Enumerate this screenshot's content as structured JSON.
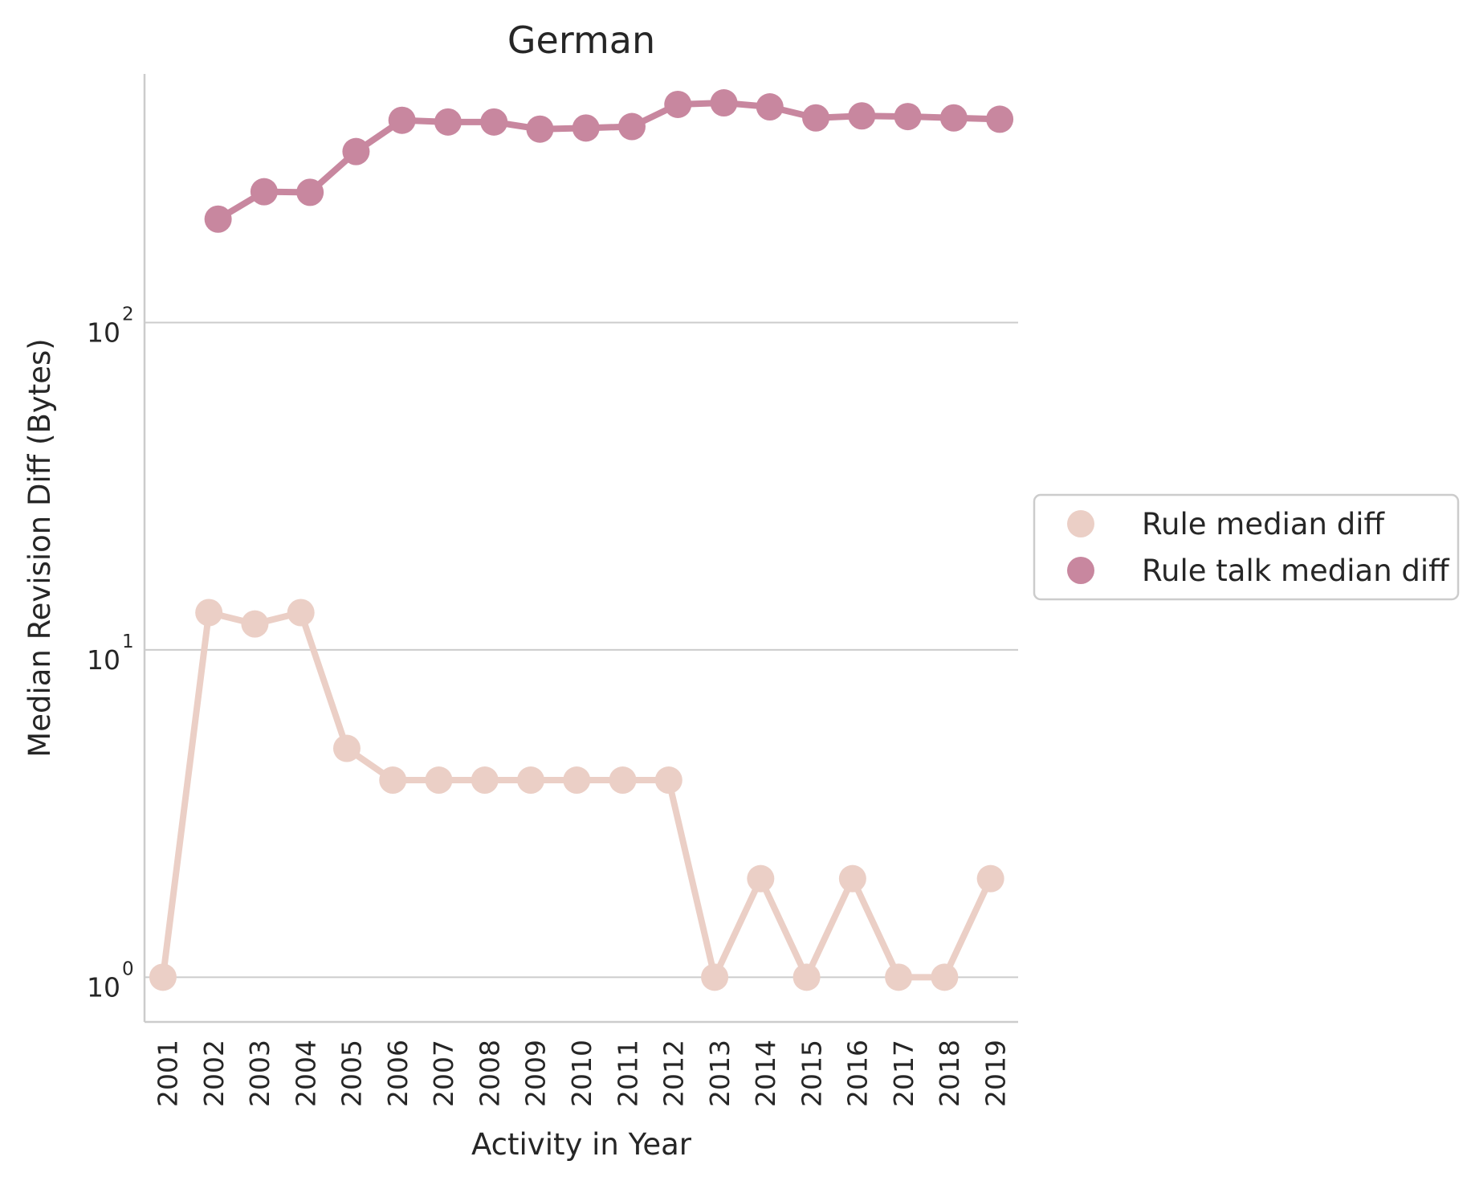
{
  "chart_data": {
    "type": "line",
    "title": "German",
    "xlabel": "Activity in Year",
    "ylabel": "Median Revision Diff (Bytes)",
    "yscale": "log",
    "ylim": [
      0.73,
      575
    ],
    "yticks": [
      {
        "value": 1,
        "base": "10",
        "exp": "0"
      },
      {
        "value": 10,
        "base": "10",
        "exp": "1"
      },
      {
        "value": 100,
        "base": "10",
        "exp": "2"
      }
    ],
    "grid": "horizontal",
    "legend_position": "center-right-outside",
    "categories": [
      "2001",
      "2002",
      "2003",
      "2004",
      "2005",
      "2006",
      "2007",
      "2008",
      "2009",
      "2010",
      "2011",
      "2012",
      "2013",
      "2014",
      "2015",
      "2016",
      "2017",
      "2018",
      "2019"
    ],
    "series": [
      {
        "name": "Rule median diff",
        "color": "#ebcfc6",
        "offset": -0.1,
        "values": [
          1,
          13,
          12,
          13,
          5,
          4,
          4,
          4,
          4,
          4,
          4,
          4,
          1,
          2,
          1,
          2,
          1,
          1,
          2
        ]
      },
      {
        "name": "Rule talk median diff",
        "color": "#c8879f",
        "offset": 0.1,
        "values": [
          null,
          207,
          251,
          250,
          333,
          415,
          410,
          410,
          390,
          393,
          397,
          464,
          469,
          456,
          422,
          428,
          426,
          422,
          418
        ]
      }
    ]
  }
}
